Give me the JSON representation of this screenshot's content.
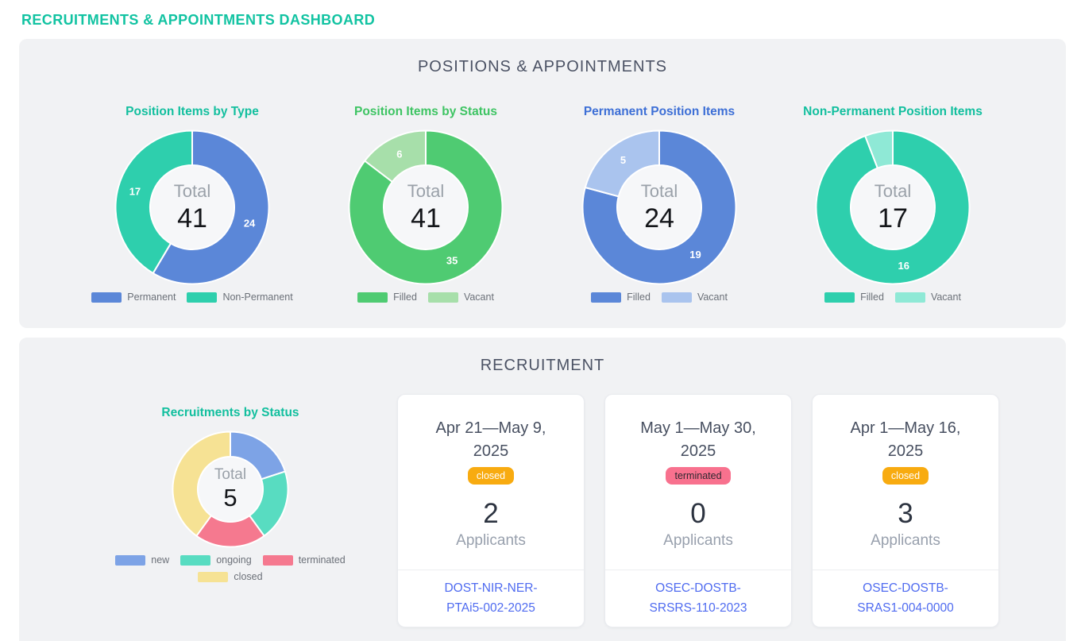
{
  "page_title": "RECRUITMENTS & APPOINTMENTS DASHBOARD",
  "theme": {
    "accent_teal": "#12c3a2",
    "panel_bg": "#f1f2f4",
    "heading_color": "#4b5264",
    "link_color": "#4f6bf0",
    "donut_hole_bg": "#f6f7f9"
  },
  "sections": {
    "positions": {
      "heading": "POSITIONS & APPOINTMENTS"
    },
    "recruitment": {
      "heading": "RECRUITMENT",
      "cards": [
        {
          "date_range": "Apr 21—May 9, 2025",
          "status": "closed",
          "badge_bg": "#f8ab10",
          "badge_text_color": "#ffffff",
          "applicants_count": "2",
          "applicants_label": "Applicants",
          "reference": "DOST-NIR-NER-PTAi5-002-2025"
        },
        {
          "date_range": "May 1—May 30, 2025",
          "status": "terminated",
          "badge_bg": "#f8718e",
          "badge_text_color": "#2e2730",
          "applicants_count": "0",
          "applicants_label": "Applicants",
          "reference": "OSEC-DOSTB-SRSRS-110-2023"
        },
        {
          "date_range": "Apr 1—May 16, 2025",
          "status": "closed",
          "badge_bg": "#f8ab10",
          "badge_text_color": "#ffffff",
          "applicants_count": "3",
          "applicants_label": "Applicants",
          "reference": "OSEC-DOSTB-SRAS1-004-0000"
        }
      ]
    }
  },
  "chart_data": [
    {
      "type": "donut",
      "title": "Position Items by Type",
      "title_color": "#12bf9e",
      "center_label": "Total",
      "total": 41,
      "show_segment_values": true,
      "legend_position": "bottom",
      "segments": [
        {
          "label": "Permanent",
          "value": 24,
          "color": "#5b87d8"
        },
        {
          "label": "Non-Permanent",
          "value": 17,
          "color": "#2ecfad"
        }
      ]
    },
    {
      "type": "donut",
      "title": "Position Items by Status",
      "title_color": "#3ec463",
      "center_label": "Total",
      "total": 41,
      "show_segment_values": true,
      "legend_position": "bottom",
      "segments": [
        {
          "label": "Filled",
          "value": 35,
          "color": "#4fcb72"
        },
        {
          "label": "Vacant",
          "value": 6,
          "color": "#a7dfaa"
        }
      ]
    },
    {
      "type": "donut",
      "title": "Permanent Position Items",
      "title_color": "#3d6fd6",
      "center_label": "Total",
      "total": 24,
      "show_segment_values": true,
      "legend_position": "bottom",
      "segments": [
        {
          "label": "Filled",
          "value": 19,
          "color": "#5b87d8"
        },
        {
          "label": "Vacant",
          "value": 5,
          "color": "#aac4ee"
        }
      ]
    },
    {
      "type": "donut",
      "title": "Non-Permanent Position Items",
      "title_color": "#12bf9e",
      "center_label": "Total",
      "total": 17,
      "show_segment_values": true,
      "legend_position": "bottom",
      "segments": [
        {
          "label": "Filled",
          "value": 16,
          "color": "#2ecfad"
        },
        {
          "label": "Vacant",
          "value": 1,
          "color": "#8fe9d6"
        }
      ]
    },
    {
      "type": "donut",
      "title": "Recruitments by Status",
      "title_color": "#12bf9e",
      "center_label": "Total",
      "total": 5,
      "show_segment_values": false,
      "legend_position": "bottom",
      "segments": [
        {
          "label": "new",
          "value": 1,
          "color": "#7da3e6"
        },
        {
          "label": "ongoing",
          "value": 1,
          "color": "#58dcc1"
        },
        {
          "label": "terminated",
          "value": 1,
          "color": "#f5798f"
        },
        {
          "label": "closed",
          "value": 2,
          "color": "#f6e294"
        }
      ]
    }
  ]
}
